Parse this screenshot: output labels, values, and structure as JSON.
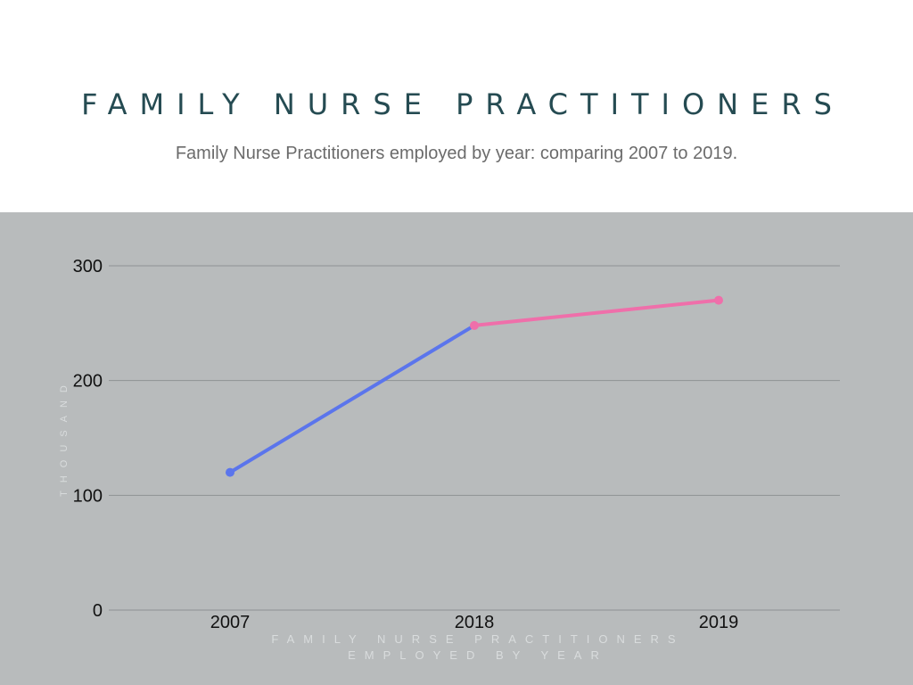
{
  "header": {
    "title": "FAMILY NURSE PRACTITIONERS",
    "subtitle": "Family Nurse Practitioners employed by year: comparing 2007 to 2019."
  },
  "chart_data": {
    "type": "line",
    "categories": [
      "2007",
      "2018",
      "2019"
    ],
    "series": [
      {
        "values": [
          120,
          248,
          270
        ]
      }
    ],
    "segment_colors": [
      "#5b75ec",
      "#ef6faa"
    ],
    "ylabel": "THOUSAND",
    "xlabel": "FAMILY NURSE PRACTITIONERS EMPLOYED BY YEAR",
    "ylim": [
      0,
      300
    ],
    "yticks": [
      0,
      100,
      200,
      300
    ],
    "grid": true,
    "colors": {
      "panel": "#b8bbbc",
      "grid": "#8e9293",
      "axis_title": "#d9dcdd",
      "title": "#254b52"
    }
  }
}
